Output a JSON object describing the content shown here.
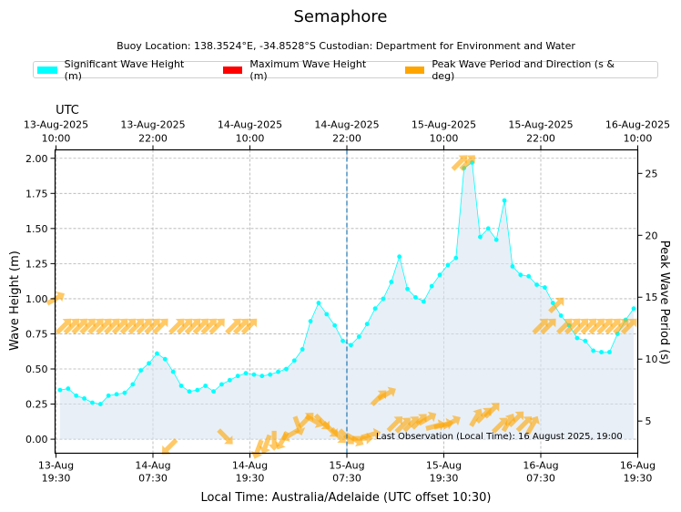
{
  "title": "Semaphore",
  "subtitle": "Buoy Location: 138.3524°E, -34.8528°S     Custodian: Department for Environment and Water",
  "colors": {
    "sig": "#00ffff",
    "max": "#ff0000",
    "peak": "#ffa500",
    "fill": "#d8e5f2",
    "grid": "#b0b0b0",
    "vline": "#1f77b4"
  },
  "legend": [
    {
      "label": "Significant Wave Height (m)",
      "color": "#00ffff"
    },
    {
      "label": "Maximum Wave Height (m)",
      "color": "#ff0000"
    },
    {
      "label": "Peak Wave Period and Direction (s & deg)",
      "color": "#ffa500"
    }
  ],
  "chart_data": {
    "type": "line",
    "title": "Semaphore",
    "xlabel": "Local Time: Australia/Adelaide (UTC offset 10:30)",
    "ylabel": "Wave Height (m)",
    "y2label": "Peak Wave Period (s)",
    "top_axis_label": "UTC",
    "xlim": [
      0,
      72
    ],
    "ylim": [
      -0.1,
      2.06
    ],
    "y2lim": [
      2.4,
      26.9
    ],
    "yticks": [
      "0.00",
      "0.25",
      "0.50",
      "0.75",
      "1.00",
      "1.25",
      "1.50",
      "1.75",
      "2.00"
    ],
    "y2ticks": [
      "5",
      "10",
      "15",
      "20",
      "25"
    ],
    "bottom_ticks": [
      {
        "x": 0,
        "line1": "13-Aug",
        "line2": "19:30"
      },
      {
        "x": 12,
        "line1": "14-Aug",
        "line2": "07:30"
      },
      {
        "x": 24,
        "line1": "14-Aug",
        "line2": "19:30"
      },
      {
        "x": 36,
        "line1": "15-Aug",
        "line2": "07:30"
      },
      {
        "x": 48,
        "line1": "15-Aug",
        "line2": "19:30"
      },
      {
        "x": 60,
        "line1": "16-Aug",
        "line2": "07:30"
      },
      {
        "x": 72,
        "line1": "16-Aug",
        "line2": "19:30"
      }
    ],
    "top_ticks": [
      {
        "x": 0,
        "line1": "13-Aug-2025",
        "line2": "10:00"
      },
      {
        "x": 12,
        "line1": "13-Aug-2025",
        "line2": "22:00"
      },
      {
        "x": 24,
        "line1": "14-Aug-2025",
        "line2": "10:00"
      },
      {
        "x": 36,
        "line1": "14-Aug-2025",
        "line2": "22:00"
      },
      {
        "x": 48,
        "line1": "15-Aug-2025",
        "line2": "10:00"
      },
      {
        "x": 60,
        "line1": "15-Aug-2025",
        "line2": "22:00"
      },
      {
        "x": 72,
        "line1": "16-Aug-2025",
        "line2": "10:00"
      }
    ],
    "now_line_x": 36,
    "last_observation": "Last Observation (Local Time): 16 August 2025, 19:00",
    "series": [
      {
        "name": "Significant Wave Height (m)",
        "x": [
          0.5,
          1.5,
          2.5,
          3.5,
          4.5,
          5.5,
          6.5,
          7.5,
          8.5,
          9.5,
          10.5,
          11.5,
          12.5,
          13.5,
          14.5,
          15.5,
          16.5,
          17.5,
          18.5,
          19.5,
          20.5,
          21.5,
          22.5,
          23.5,
          24.5,
          25.5,
          26.5,
          27.5,
          28.5,
          29.5,
          30.5,
          31.5,
          32.5,
          33.5,
          34.5,
          35.5,
          36.5,
          37.5,
          38.5,
          39.5,
          40.5,
          41.5,
          42.5,
          43.5,
          44.5,
          45.5,
          46.5,
          47.5,
          48.5,
          49.5,
          50.5,
          51.5,
          52.5,
          53.5,
          54.5,
          55.5,
          56.5,
          57.5,
          58.5,
          59.5,
          60.5,
          61.5,
          62.5,
          63.5,
          64.5,
          65.5,
          66.5,
          67.5,
          68.5,
          69.5,
          70.5,
          71.5
        ],
        "values": [
          0.35,
          0.36,
          0.31,
          0.29,
          0.26,
          0.25,
          0.31,
          0.32,
          0.33,
          0.39,
          0.49,
          0.54,
          0.61,
          0.57,
          0.48,
          0.38,
          0.34,
          0.35,
          0.38,
          0.34,
          0.39,
          0.42,
          0.45,
          0.47,
          0.46,
          0.45,
          0.46,
          0.48,
          0.5,
          0.56,
          0.64,
          0.84,
          0.97,
          0.89,
          0.81,
          0.7,
          0.67,
          0.73,
          0.82,
          0.93,
          1.0,
          1.12,
          1.3,
          1.07,
          1.01,
          0.98,
          1.09,
          1.17,
          1.24,
          1.29,
          1.93,
          1.97,
          1.44,
          1.5,
          1.42,
          1.7,
          1.23,
          1.17,
          1.16,
          1.1,
          1.08,
          0.97,
          0.88,
          0.81,
          0.72,
          0.7,
          0.63,
          0.62,
          0.62,
          0.75,
          0.85,
          0.93
        ]
      },
      {
        "name": "Peak Wave Period and Direction (s & deg)",
        "x": [
          0,
          1,
          2,
          3,
          4,
          5,
          6,
          7,
          8,
          9,
          10,
          11,
          12,
          13,
          14,
          15,
          16,
          17,
          18,
          19,
          20,
          21,
          22,
          23,
          24,
          25,
          26,
          27,
          28,
          29,
          30,
          31,
          32,
          33,
          34,
          35,
          36,
          37,
          38,
          39,
          40,
          41,
          42,
          43,
          44,
          45,
          46,
          47,
          48,
          49,
          50,
          51,
          52,
          53,
          54,
          55,
          56,
          57,
          58,
          59,
          60,
          61,
          62,
          63,
          64,
          65,
          66,
          67,
          68,
          69,
          70,
          71
        ],
        "values": [
          14.9,
          12.7,
          12.7,
          12.7,
          12.7,
          12.7,
          12.7,
          12.7,
          12.7,
          12.7,
          12.7,
          12.7,
          12.7,
          12.7,
          2.9,
          12.7,
          12.7,
          12.7,
          12.7,
          12.7,
          12.7,
          3.7,
          12.7,
          12.7,
          12.7,
          2.7,
          3.1,
          3.4,
          3.4,
          3.9,
          4.6,
          5.1,
          5.0,
          4.9,
          4.3,
          3.8,
          3.7,
          3.5,
          3.6,
          3.9,
          6.9,
          7.2,
          4.8,
          4.7,
          4.8,
          5.0,
          5.2,
          4.6,
          4.7,
          4.9,
          25.9,
          25.9,
          5.3,
          5.5,
          5.9,
          4.7,
          4.9,
          5.2,
          4.8,
          4.7,
          12.7,
          12.7,
          14.4,
          12.7,
          12.7,
          12.7,
          12.7,
          12.7,
          12.7,
          12.7,
          12.7,
          12.7
        ],
        "directions": [
          60,
          45,
          45,
          45,
          45,
          45,
          45,
          45,
          45,
          45,
          45,
          45,
          45,
          45,
          225,
          45,
          45,
          45,
          45,
          45,
          45,
          135,
          45,
          45,
          45,
          200,
          200,
          180,
          210,
          240,
          160,
          45,
          120,
          135,
          135,
          135,
          135,
          120,
          90,
          75,
          45,
          60,
          45,
          45,
          45,
          45,
          60,
          75,
          75,
          60,
          45,
          45,
          30,
          45,
          45,
          45,
          30,
          45,
          45,
          30,
          45,
          45,
          45,
          45,
          45,
          45,
          45,
          45,
          45,
          45,
          45,
          45
        ]
      }
    ]
  }
}
